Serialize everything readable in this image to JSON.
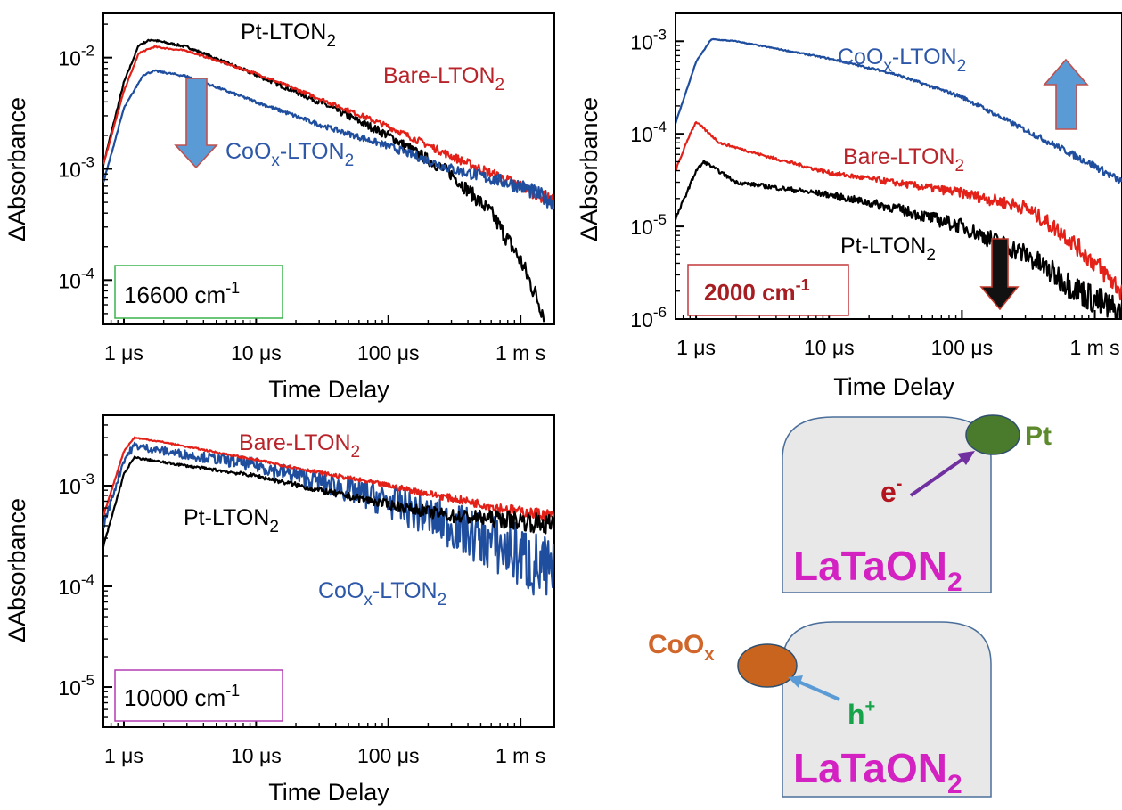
{
  "colors": {
    "bare": "#e32119",
    "pt": "#000000",
    "coox": "#1f4e9e",
    "bare_label": "#b8242a",
    "coox_label": "#d0662a",
    "arrow_blue": "#5b9bd5",
    "arrow_black": "#111111",
    "box_green": "#3cb44b",
    "box_red": "#c0393b",
    "box_magenta": "#b43cb4",
    "wave_red": "#a61e22",
    "pt_particle": "#4a7a2c",
    "pt_label": "#5c8a2c",
    "coox_particle": "#c8641e",
    "electron": "#b3151e",
    "hole": "#16a34a",
    "electron_arrow": "#7030a0",
    "hole_arrow": "#5b9bd5",
    "latao": "#d421c2",
    "grain": "#e8e8e8"
  },
  "chart_data": [
    {
      "type": "line",
      "panel": "top-left",
      "xscale": "log",
      "yscale": "log",
      "xlim_s": [
        7e-07,
        0.0018
      ],
      "ylim": [
        4e-05,
        0.025
      ],
      "xlabel": "Time Delay",
      "ylabel": "ΔAbsorbance",
      "xticks": [
        {
          "value": 1e-06,
          "label": "1 μs"
        },
        {
          "value": 1e-05,
          "label": "10 μs"
        },
        {
          "value": 0.0001,
          "label": "100 μs"
        },
        {
          "value": 0.001,
          "label": "1 m s"
        }
      ],
      "yticks": [
        {
          "value": 0.01,
          "base": "10",
          "exp": "-2"
        },
        {
          "value": 0.001,
          "base": "10",
          "exp": "-3"
        },
        {
          "value": 0.0001,
          "base": "10",
          "exp": "-4"
        }
      ],
      "annotation": {
        "text": "16600 cm",
        "sup": "-1"
      },
      "series": [
        {
          "name": "Pt-LTON",
          "sub": "2",
          "color_key": "pt",
          "noise": 0.06,
          "points": [
            [
              7e-07,
              0.0011
            ],
            [
              1e-06,
              0.006
            ],
            [
              1.3e-06,
              0.013
            ],
            [
              1.6e-06,
              0.0145
            ],
            [
              3e-06,
              0.0125
            ],
            [
              1e-05,
              0.007
            ],
            [
              3e-05,
              0.004
            ],
            [
              0.0001,
              0.002
            ],
            [
              0.0003,
              0.0009
            ],
            [
              0.0006,
              0.0004
            ],
            [
              0.001,
              0.00015
            ],
            [
              0.0015,
              5e-05
            ]
          ]
        },
        {
          "name": "Bare-LTON",
          "sub": "2",
          "color_key": "bare",
          "noise": 0.04,
          "points": [
            [
              7e-07,
              0.0011
            ],
            [
              1e-06,
              0.005
            ],
            [
              1.3e-06,
              0.011
            ],
            [
              1.7e-06,
              0.0125
            ],
            [
              3e-06,
              0.0115
            ],
            [
              1e-05,
              0.0072
            ],
            [
              3e-05,
              0.0043
            ],
            [
              0.0001,
              0.0024
            ],
            [
              0.0003,
              0.0013
            ],
            [
              0.001,
              0.0007
            ],
            [
              0.0018,
              0.0005
            ]
          ]
        },
        {
          "name": "CoO",
          "sub": "x",
          "suffix": "-LTON",
          "suffix_sub": "2",
          "color_key": "coox",
          "noise": 0.05,
          "points": [
            [
              7e-07,
              0.00075
            ],
            [
              1e-06,
              0.0035
            ],
            [
              1.4e-06,
              0.007
            ],
            [
              1.7e-06,
              0.0076
            ],
            [
              3e-06,
              0.0068
            ],
            [
              1e-05,
              0.004
            ],
            [
              3e-05,
              0.0025
            ],
            [
              0.0001,
              0.0016
            ],
            [
              0.0003,
              0.001
            ],
            [
              0.001,
              0.0007
            ],
            [
              0.0018,
              0.0005
            ]
          ]
        }
      ]
    },
    {
      "type": "line",
      "panel": "top-right",
      "xscale": "log",
      "yscale": "log",
      "xlim_s": [
        7e-07,
        0.0016
      ],
      "ylim": [
        1e-06,
        0.002
      ],
      "xlabel": "Time Delay",
      "ylabel": "ΔAbsorbance",
      "xticks": [
        {
          "value": 1e-06,
          "label": "1 μs"
        },
        {
          "value": 1e-05,
          "label": "10 μs"
        },
        {
          "value": 0.0001,
          "label": "100 μs"
        },
        {
          "value": 0.001,
          "label": "1 m s"
        }
      ],
      "yticks": [
        {
          "value": 0.001,
          "base": "10",
          "exp": "-3"
        },
        {
          "value": 0.0001,
          "base": "10",
          "exp": "-4"
        },
        {
          "value": 1e-05,
          "base": "10",
          "exp": "-5"
        },
        {
          "value": 1e-06,
          "base": "10",
          "exp": "-6"
        }
      ],
      "annotation": {
        "text": "2000 cm",
        "sup": "-1"
      },
      "series": [
        {
          "name": "CoO",
          "sub": "x",
          "suffix": "-LTON",
          "suffix_sub": "2",
          "color_key": "coox",
          "noise": 0.03,
          "points": [
            [
              7e-07,
              0.00013
            ],
            [
              1e-06,
              0.0006
            ],
            [
              1.3e-06,
              0.00105
            ],
            [
              2e-06,
              0.001
            ],
            [
              1e-05,
              0.00065
            ],
            [
              3e-05,
              0.00045
            ],
            [
              0.0001,
              0.00025
            ],
            [
              0.0003,
              0.00011
            ],
            [
              0.001,
              4.5e-05
            ],
            [
              0.0016,
              3e-05
            ]
          ]
        },
        {
          "name": "Bare-LTON",
          "sub": "2",
          "color_key": "bare",
          "noise": 0.08,
          "points": [
            [
              7e-07,
              4e-05
            ],
            [
              9e-07,
              0.0001
            ],
            [
              1e-06,
              0.000135
            ],
            [
              1.5e-06,
              8e-05
            ],
            [
              3e-06,
              6e-05
            ],
            [
              1e-05,
              3.8e-05
            ],
            [
              3e-05,
              3e-05
            ],
            [
              0.0001,
              2.3e-05
            ],
            [
              0.0003,
              1.6e-05
            ],
            [
              0.0006,
              8e-06
            ],
            [
              0.001,
              4e-06
            ],
            [
              0.0016,
              2e-06
            ]
          ]
        },
        {
          "name": "Pt-LTON",
          "sub": "2",
          "color_key": "pt",
          "noise": 0.12,
          "points": [
            [
              7e-07,
              1.2e-05
            ],
            [
              1e-06,
              4e-05
            ],
            [
              1.15e-06,
              5e-05
            ],
            [
              2e-06,
              3e-05
            ],
            [
              1e-05,
              2.2e-05
            ],
            [
              3e-05,
              1.6e-05
            ],
            [
              0.0001,
              1e-05
            ],
            [
              0.0003,
              5e-06
            ],
            [
              0.0006,
              2.5e-06
            ],
            [
              0.001,
              1.6e-06
            ],
            [
              0.0016,
              1.1e-06
            ]
          ]
        }
      ]
    },
    {
      "type": "line",
      "panel": "bottom-left",
      "xscale": "log",
      "yscale": "log",
      "xlim_s": [
        7e-07,
        0.0018
      ],
      "ylim": [
        4e-06,
        0.005
      ],
      "xlabel": "Time Delay",
      "ylabel": "ΔAbsorbance",
      "xticks": [
        {
          "value": 1e-06,
          "label": "1 μs"
        },
        {
          "value": 1e-05,
          "label": "10 μs"
        },
        {
          "value": 0.0001,
          "label": "100 μs"
        },
        {
          "value": 0.001,
          "label": "1 m s"
        }
      ],
      "yticks": [
        {
          "value": 0.001,
          "base": "10",
          "exp": "-3"
        },
        {
          "value": 0.0001,
          "base": "10",
          "exp": "-4"
        },
        {
          "value": 1e-05,
          "base": "10",
          "exp": "-5"
        }
      ],
      "annotation": {
        "text": "10000 cm",
        "sup": "-1"
      },
      "series": [
        {
          "name": "CoO",
          "sub": "x",
          "suffix": "-LTON",
          "suffix_sub": "2",
          "color_key": "coox",
          "noise": 0.25,
          "points": [
            [
              7e-07,
              0.0004
            ],
            [
              1e-06,
              0.0018
            ],
            [
              1.2e-06,
              0.0025
            ],
            [
              2e-06,
              0.0022
            ],
            [
              1e-05,
              0.0016
            ],
            [
              3e-05,
              0.0011
            ],
            [
              0.0001,
              0.0007
            ],
            [
              0.0003,
              0.0004
            ],
            [
              0.001,
              0.0002
            ],
            [
              0.0018,
              0.00012
            ]
          ]
        },
        {
          "name": "Bare-LTON",
          "sub": "2",
          "color_key": "bare",
          "noise": 0.04,
          "points": [
            [
              7e-07,
              0.0005
            ],
            [
              1e-06,
              0.0022
            ],
            [
              1.2e-06,
              0.003
            ],
            [
              2e-06,
              0.0027
            ],
            [
              1e-05,
              0.0018
            ],
            [
              3e-05,
              0.00135
            ],
            [
              0.0001,
              0.001
            ],
            [
              0.0003,
              0.00075
            ],
            [
              0.001,
              0.00055
            ],
            [
              0.0018,
              0.0005
            ]
          ]
        },
        {
          "name": "Pt-LTON",
          "sub": "2",
          "color_key": "pt",
          "noise": 0.07,
          "points": [
            [
              7e-07,
              0.00025
            ],
            [
              1e-06,
              0.0013
            ],
            [
              1.2e-06,
              0.0019
            ],
            [
              2e-06,
              0.0017
            ],
            [
              1e-05,
              0.00125
            ],
            [
              3e-05,
              0.0009
            ],
            [
              0.0001,
              0.00065
            ],
            [
              0.0003,
              0.0005
            ],
            [
              0.001,
              0.00045
            ],
            [
              0.0018,
              0.0004
            ]
          ]
        }
      ]
    }
  ],
  "scheme": {
    "top": {
      "cocatalyst": "Pt",
      "carrier": "e",
      "carrier_sup": "-",
      "material": "LaTaON",
      "material_sub": "2"
    },
    "bottom": {
      "cocatalyst": "CoO",
      "cocatalyst_sub": "x",
      "carrier": "h",
      "carrier_sup": "+",
      "material": "LaTaON",
      "material_sub": "2"
    }
  }
}
